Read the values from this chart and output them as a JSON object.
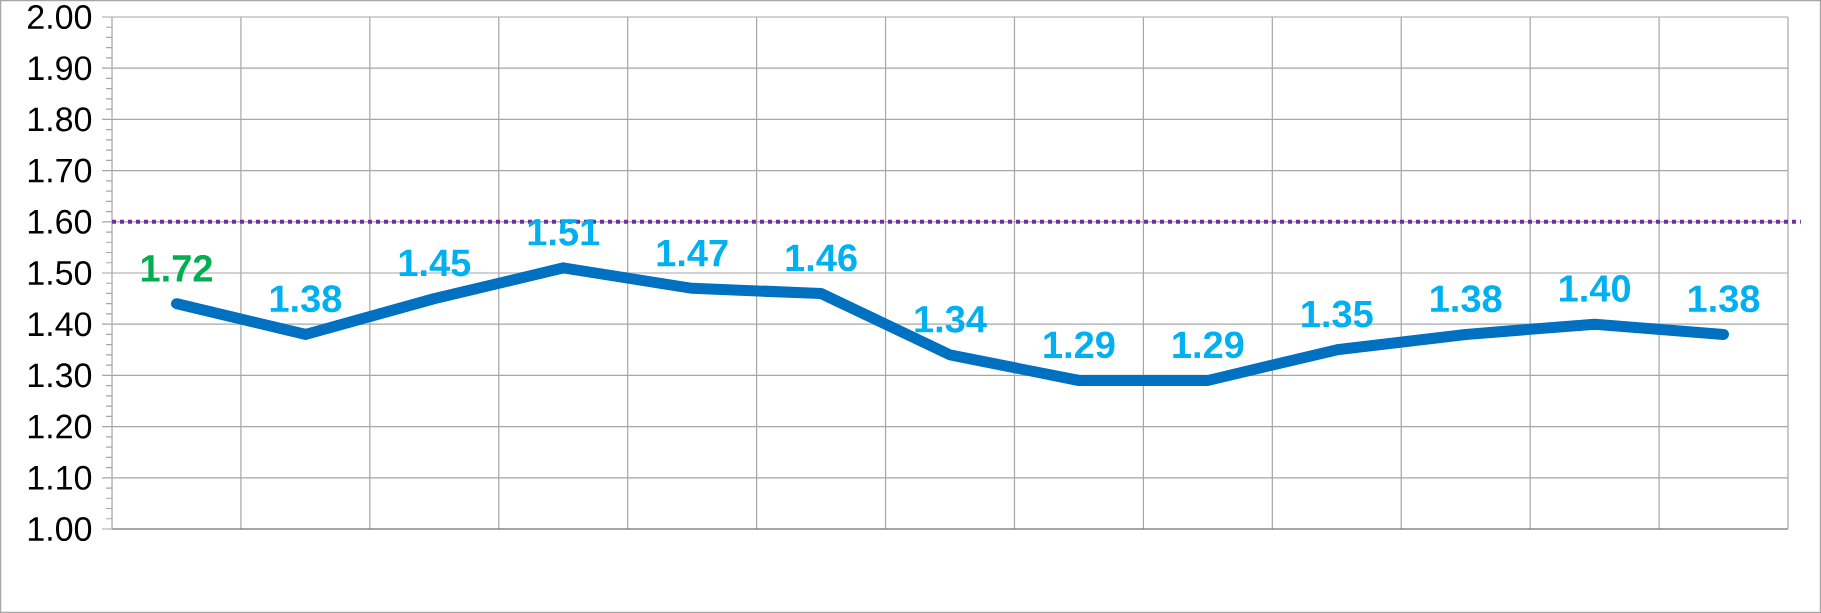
{
  "chart_data": {
    "type": "line",
    "categories": [
      null,
      null,
      null,
      null,
      null,
      null,
      null,
      null,
      null,
      null,
      null,
      null,
      null
    ],
    "values": [
      1.44,
      1.38,
      1.45,
      1.51,
      1.47,
      1.46,
      1.34,
      1.29,
      1.29,
      1.35,
      1.38,
      1.4,
      1.38
    ],
    "annotations": [
      "1.72"
    ],
    "value_labels": [
      null,
      "1.38",
      "1.45",
      "1.51",
      "1.47",
      "1.46",
      "1.34",
      "1.29",
      "1.29",
      "1.35",
      "1.38",
      "1.40",
      "1.38"
    ],
    "color": "#0070c0",
    "ylim": [
      1.0,
      2.0
    ],
    "yticks": [
      {
        "value": 1.0,
        "label": "1.00"
      },
      {
        "value": 1.1,
        "label": "1.10"
      },
      {
        "value": 1.2,
        "label": "1.20"
      },
      {
        "value": 1.3,
        "label": "1.30"
      },
      {
        "value": 1.4,
        "label": "1.40"
      },
      {
        "value": 1.5,
        "label": "1.50"
      },
      {
        "value": 1.6,
        "label": "1.60"
      },
      {
        "value": 1.7,
        "label": "1.70"
      },
      {
        "value": 1.8,
        "label": "1.80"
      },
      {
        "value": 1.9,
        "label": "1.90"
      },
      {
        "value": 2.0,
        "label": "2.00"
      }
    ],
    "grid": true,
    "tick_labels": "y",
    "ref_lines": [
      {
        "axis": "y",
        "value": 1.6,
        "color": "#7030a0",
        "line_style": "dotted"
      }
    ]
  }
}
